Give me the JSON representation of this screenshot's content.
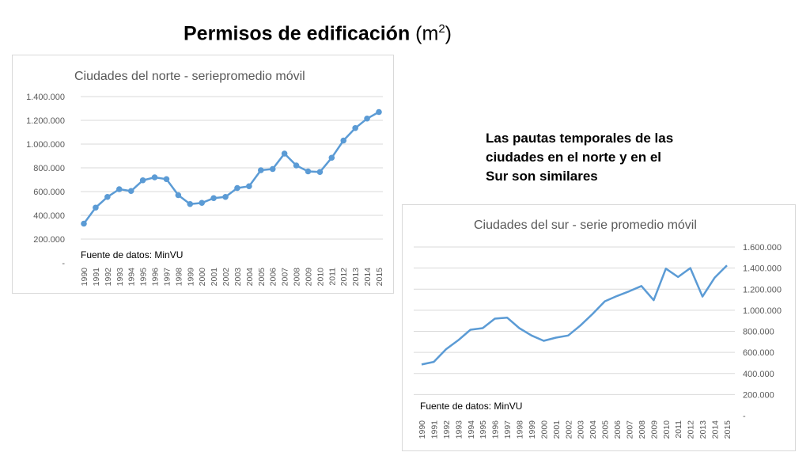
{
  "slide": {
    "title_bold": "Permisos de edificación",
    "title_unit": "(m",
    "title_sup": "2",
    "title_close": ")",
    "note": "Las pautas temporales de las ciudades en el norte y en el Sur son similares"
  },
  "colors": {
    "series": "#5b9bd5",
    "grid": "#d9d9d9",
    "axis_text": "#595959",
    "title_text": "#595959",
    "border": "#d9d9d9"
  },
  "chart_data": [
    {
      "id": "north",
      "type": "line",
      "title": "Ciudades del norte - seriepromedio móvil",
      "source_note": "Fuente de datos: MinVU",
      "axis_side": "left",
      "markers": true,
      "grid": true,
      "ylim": [
        0,
        1400000
      ],
      "yticks": [
        0,
        200000,
        400000,
        600000,
        800000,
        1000000,
        1200000,
        1400000
      ],
      "ytick_labels": [
        "-",
        "200.000",
        "400.000",
        "600.000",
        "800.000",
        "1.000.000",
        "1.200.000",
        "1.400.000"
      ],
      "categories": [
        "1990",
        "1991",
        "1992",
        "1993",
        "1994",
        "1995",
        "1996",
        "1997",
        "1998",
        "1999",
        "2000",
        "2001",
        "2002",
        "2003",
        "2004",
        "2005",
        "2006",
        "2007",
        "2008",
        "2009",
        "2010",
        "2011",
        "2012",
        "2013",
        "2014",
        "2015"
      ],
      "series": [
        {
          "values": [
            330000,
            465000,
            555000,
            620000,
            605000,
            695000,
            720000,
            705000,
            570000,
            495000,
            505000,
            545000,
            555000,
            630000,
            645000,
            780000,
            790000,
            920000,
            820000,
            770000,
            765000,
            885000,
            1030000,
            1135000,
            1215000,
            1270000
          ]
        }
      ]
    },
    {
      "id": "south",
      "type": "line",
      "title": "Ciudades del sur - serie promedio móvil",
      "source_note": "Fuente de datos: MinVU",
      "axis_side": "right",
      "markers": false,
      "grid": true,
      "ylim": [
        0,
        1600000
      ],
      "yticks": [
        0,
        200000,
        400000,
        600000,
        800000,
        1000000,
        1200000,
        1400000,
        1600000
      ],
      "ytick_labels": [
        "-",
        "200.000",
        "400.000",
        "600.000",
        "800.000",
        "1.000.000",
        "1.200.000",
        "1.400.000",
        "1.600.000"
      ],
      "categories": [
        "1990",
        "1991",
        "1992",
        "1993",
        "1994",
        "1995",
        "1996",
        "1997",
        "1998",
        "1999",
        "2000",
        "2001",
        "2002",
        "2003",
        "2004",
        "2005",
        "2006",
        "2007",
        "2008",
        "2009",
        "2010",
        "2011",
        "2012",
        "2013",
        "2014",
        "2015"
      ],
      "series": [
        {
          "values": [
            485000,
            510000,
            630000,
            715000,
            815000,
            830000,
            920000,
            930000,
            830000,
            760000,
            710000,
            740000,
            760000,
            855000,
            965000,
            1085000,
            1135000,
            1180000,
            1230000,
            1095000,
            1395000,
            1315000,
            1400000,
            1130000,
            1310000,
            1425000
          ]
        }
      ]
    }
  ]
}
